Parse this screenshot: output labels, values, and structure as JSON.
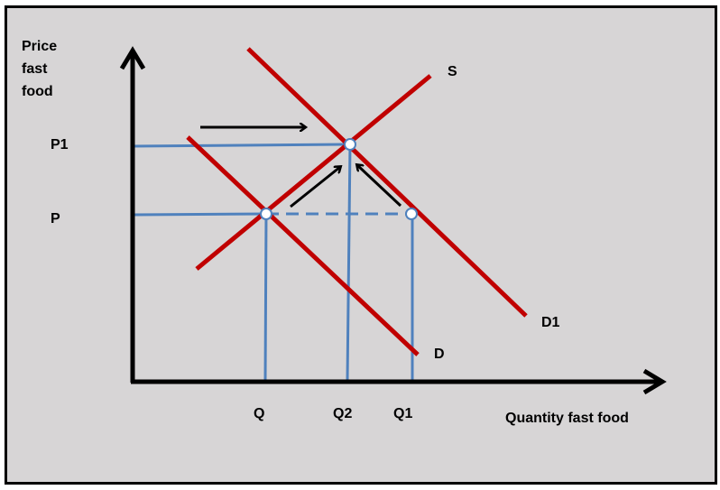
{
  "axes": {
    "y_label_lines": [
      "Price",
      "fast",
      "food"
    ],
    "x_label": "Quantity fast food"
  },
  "price_labels": {
    "p1": "P1",
    "p": "P"
  },
  "quantity_labels": {
    "q": "Q",
    "q2": "Q2",
    "q1": "Q1"
  },
  "curve_labels": {
    "supply": "S",
    "demand_new": "D1",
    "demand_old": "D"
  },
  "colors": {
    "background": "#d7d5d6",
    "curves": "#c00000",
    "guides": "#4f81bd",
    "axes": "#000000",
    "arrows": "#000000",
    "points_fill": "#ffffff"
  }
}
